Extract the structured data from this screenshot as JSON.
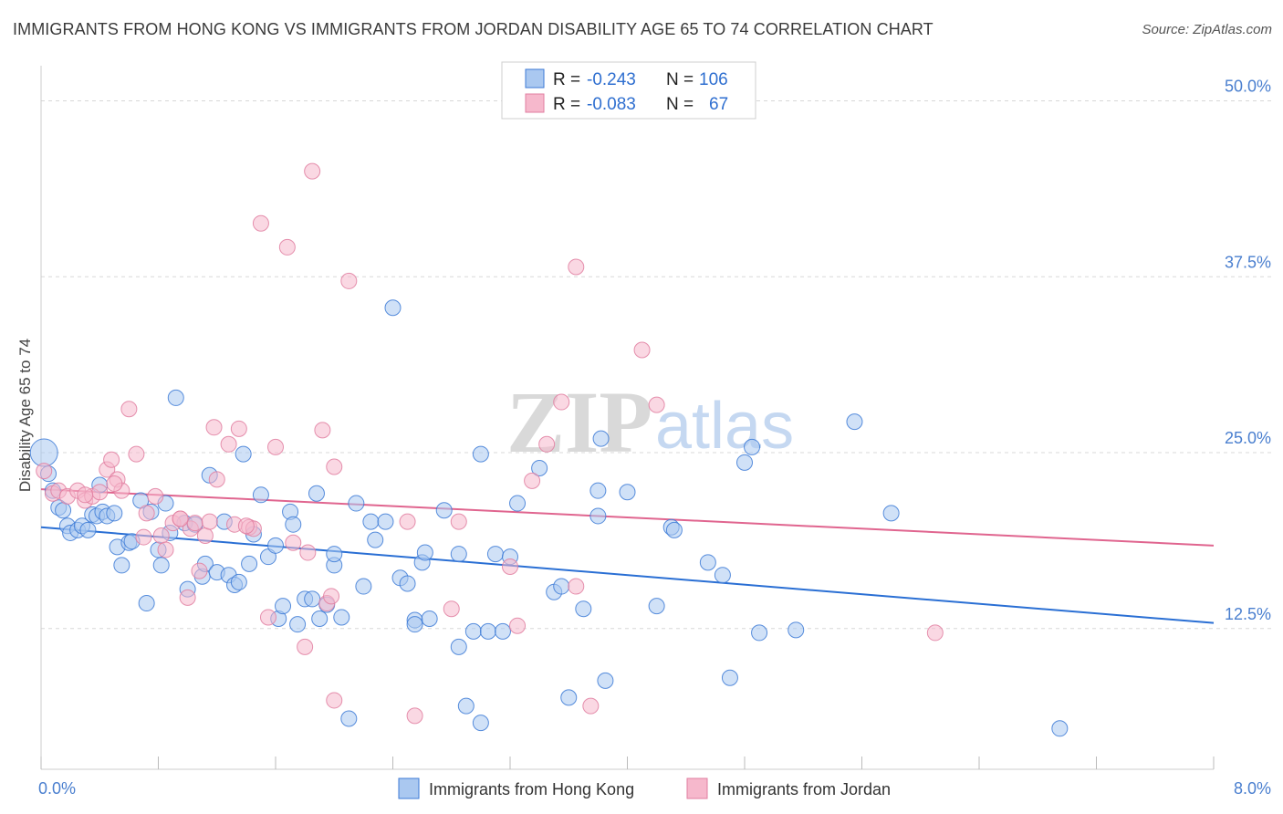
{
  "title": "IMMIGRANTS FROM HONG KONG VS IMMIGRANTS FROM JORDAN DISABILITY AGE 65 TO 74 CORRELATION CHART",
  "source": "Source: ZipAtlas.com",
  "watermark": {
    "zip": "ZIP",
    "atlas": "atlas"
  },
  "legend_stats": [
    {
      "r_label": "R =",
      "r_value": "-0.243",
      "n_label": "N =",
      "n_value": "106"
    },
    {
      "r_label": "R =",
      "r_value": "-0.083",
      "n_label": "N =",
      "n_value": "67"
    }
  ],
  "bottom_legend": [
    "Immigrants from Hong Kong",
    "Immigrants from Jordan"
  ],
  "colors": {
    "blue_fill": "#aac8f0",
    "blue_stroke": "#3c7ad6",
    "blue_line": "#2a6fd4",
    "pink_fill": "#f6b8cc",
    "pink_stroke": "#e07ea0",
    "pink_line": "#e0658f",
    "tick": "#4a7fcf",
    "grid": "#d8d8d8"
  },
  "chart_data": {
    "type": "scatter",
    "xlabel": "",
    "ylabel": "Disability Age 65 to 74",
    "xlim": [
      0,
      8
    ],
    "ylim": [
      2.5,
      52.5
    ],
    "x_tick_labels": [
      {
        "v": 0,
        "label": "0.0%"
      },
      {
        "v": 8,
        "label": "8.0%"
      }
    ],
    "y_tick_labels": [
      {
        "v": 12.5,
        "label": "12.5%"
      },
      {
        "v": 25,
        "label": "25.0%"
      },
      {
        "v": 37.5,
        "label": "37.5%"
      },
      {
        "v": 50,
        "label": "50.0%"
      }
    ],
    "grid": true,
    "legend_position": "top-center",
    "series": [
      {
        "name": "Immigrants from Hong Kong",
        "trend": {
          "x": [
            0,
            8
          ],
          "y": [
            19.7,
            12.9
          ]
        },
        "points": [
          [
            0.02,
            25.0
          ],
          [
            0.05,
            23.5
          ],
          [
            0.08,
            22.3
          ],
          [
            0.12,
            21.1
          ],
          [
            0.15,
            20.9
          ],
          [
            0.18,
            19.8
          ],
          [
            0.2,
            19.3
          ],
          [
            0.25,
            19.5
          ],
          [
            0.28,
            19.8
          ],
          [
            0.32,
            19.5
          ],
          [
            0.35,
            20.6
          ],
          [
            0.38,
            20.5
          ],
          [
            0.4,
            22.7
          ],
          [
            0.42,
            20.8
          ],
          [
            0.45,
            20.5
          ],
          [
            0.5,
            20.7
          ],
          [
            0.52,
            18.3
          ],
          [
            0.55,
            17.0
          ],
          [
            0.6,
            18.6
          ],
          [
            0.62,
            18.7
          ],
          [
            0.68,
            21.6
          ],
          [
            0.72,
            14.3
          ],
          [
            0.75,
            20.8
          ],
          [
            0.8,
            18.1
          ],
          [
            0.82,
            17.0
          ],
          [
            0.85,
            21.4
          ],
          [
            0.88,
            19.3
          ],
          [
            0.92,
            28.9
          ],
          [
            0.98,
            20.0
          ],
          [
            1.0,
            15.3
          ],
          [
            1.05,
            19.9
          ],
          [
            1.1,
            16.2
          ],
          [
            1.12,
            17.1
          ],
          [
            1.15,
            23.4
          ],
          [
            1.2,
            16.5
          ],
          [
            1.25,
            20.1
          ],
          [
            1.28,
            16.3
          ],
          [
            1.32,
            15.6
          ],
          [
            1.35,
            15.8
          ],
          [
            1.38,
            24.9
          ],
          [
            1.42,
            17.1
          ],
          [
            1.45,
            19.2
          ],
          [
            1.5,
            22.0
          ],
          [
            1.55,
            17.6
          ],
          [
            1.6,
            18.4
          ],
          [
            1.62,
            13.2
          ],
          [
            1.65,
            14.1
          ],
          [
            1.7,
            20.8
          ],
          [
            1.72,
            19.9
          ],
          [
            1.75,
            12.8
          ],
          [
            1.8,
            14.6
          ],
          [
            1.85,
            14.6
          ],
          [
            1.88,
            22.1
          ],
          [
            1.9,
            13.2
          ],
          [
            1.95,
            14.2
          ],
          [
            2.0,
            17.0
          ],
          [
            2.05,
            13.3
          ],
          [
            2.0,
            17.8
          ],
          [
            2.1,
            6.1
          ],
          [
            2.15,
            21.4
          ],
          [
            2.2,
            15.5
          ],
          [
            2.25,
            20.1
          ],
          [
            2.28,
            18.8
          ],
          [
            2.35,
            20.1
          ],
          [
            2.4,
            35.3
          ],
          [
            2.45,
            16.1
          ],
          [
            2.5,
            15.7
          ],
          [
            2.55,
            13.1
          ],
          [
            2.55,
            12.8
          ],
          [
            2.6,
            17.2
          ],
          [
            2.65,
            13.2
          ],
          [
            2.62,
            17.9
          ],
          [
            2.75,
            20.9
          ],
          [
            2.85,
            11.2
          ],
          [
            2.85,
            17.8
          ],
          [
            2.9,
            7.0
          ],
          [
            2.95,
            12.3
          ],
          [
            3.0,
            5.8
          ],
          [
            3.0,
            24.9
          ],
          [
            3.05,
            12.3
          ],
          [
            3.1,
            17.8
          ],
          [
            3.15,
            12.3
          ],
          [
            3.2,
            17.6
          ],
          [
            3.25,
            21.4
          ],
          [
            3.4,
            23.9
          ],
          [
            3.5,
            15.1
          ],
          [
            3.55,
            15.5
          ],
          [
            3.6,
            7.6
          ],
          [
            3.7,
            13.9
          ],
          [
            3.8,
            20.5
          ],
          [
            3.8,
            22.3
          ],
          [
            3.82,
            26.0
          ],
          [
            3.85,
            8.8
          ],
          [
            4.0,
            22.2
          ],
          [
            4.2,
            14.1
          ],
          [
            4.3,
            19.7
          ],
          [
            4.32,
            19.5
          ],
          [
            4.55,
            17.2
          ],
          [
            4.65,
            16.3
          ],
          [
            4.7,
            9.0
          ],
          [
            4.8,
            24.3
          ],
          [
            4.85,
            25.4
          ],
          [
            4.9,
            12.2
          ],
          [
            5.15,
            12.4
          ],
          [
            5.55,
            27.2
          ],
          [
            5.8,
            20.7
          ],
          [
            6.95,
            5.4
          ]
        ]
      },
      {
        "name": "Immigrants from Jordan",
        "trend": {
          "x": [
            0,
            8
          ],
          "y": [
            22.4,
            18.4
          ]
        },
        "points": [
          [
            0.02,
            23.7
          ],
          [
            0.08,
            22.1
          ],
          [
            0.12,
            22.3
          ],
          [
            0.18,
            21.9
          ],
          [
            0.25,
            22.3
          ],
          [
            0.3,
            21.6
          ],
          [
            0.35,
            21.9
          ],
          [
            0.4,
            22.2
          ],
          [
            0.45,
            23.8
          ],
          [
            0.48,
            24.5
          ],
          [
            0.52,
            23.1
          ],
          [
            0.55,
            22.3
          ],
          [
            0.6,
            28.1
          ],
          [
            0.65,
            24.9
          ],
          [
            0.7,
            19.0
          ],
          [
            0.72,
            20.7
          ],
          [
            0.78,
            21.9
          ],
          [
            0.82,
            19.1
          ],
          [
            0.85,
            18.1
          ],
          [
            0.9,
            20.0
          ],
          [
            0.95,
            20.3
          ],
          [
            1.0,
            14.7
          ],
          [
            1.02,
            19.6
          ],
          [
            1.05,
            20.0
          ],
          [
            1.08,
            16.6
          ],
          [
            1.12,
            19.1
          ],
          [
            1.15,
            20.1
          ],
          [
            1.18,
            26.8
          ],
          [
            1.2,
            23.1
          ],
          [
            1.28,
            25.6
          ],
          [
            1.32,
            19.9
          ],
          [
            1.35,
            26.7
          ],
          [
            1.42,
            19.7
          ],
          [
            1.45,
            19.6
          ],
          [
            1.5,
            41.3
          ],
          [
            1.55,
            13.3
          ],
          [
            1.6,
            25.4
          ],
          [
            1.68,
            39.6
          ],
          [
            1.72,
            18.6
          ],
          [
            1.8,
            11.2
          ],
          [
            1.82,
            17.9
          ],
          [
            1.85,
            45.0
          ],
          [
            1.92,
            26.6
          ],
          [
            1.95,
            14.3
          ],
          [
            1.98,
            14.8
          ],
          [
            2.0,
            7.4
          ],
          [
            2.1,
            37.2
          ],
          [
            2.5,
            20.1
          ],
          [
            2.55,
            6.3
          ],
          [
            2.8,
            13.9
          ],
          [
            2.85,
            20.1
          ],
          [
            3.2,
            16.9
          ],
          [
            3.25,
            12.7
          ],
          [
            3.35,
            23.0
          ],
          [
            3.45,
            25.6
          ],
          [
            3.55,
            28.6
          ],
          [
            3.65,
            15.5
          ],
          [
            3.65,
            38.2
          ],
          [
            3.75,
            7.0
          ],
          [
            4.1,
            32.3
          ],
          [
            4.2,
            28.4
          ],
          [
            6.1,
            12.2
          ],
          [
            0.3,
            22.0
          ],
          [
            0.5,
            22.8
          ],
          [
            0.95,
            20.3
          ],
          [
            1.4,
            19.8
          ],
          [
            2.0,
            24.0
          ]
        ]
      }
    ]
  }
}
